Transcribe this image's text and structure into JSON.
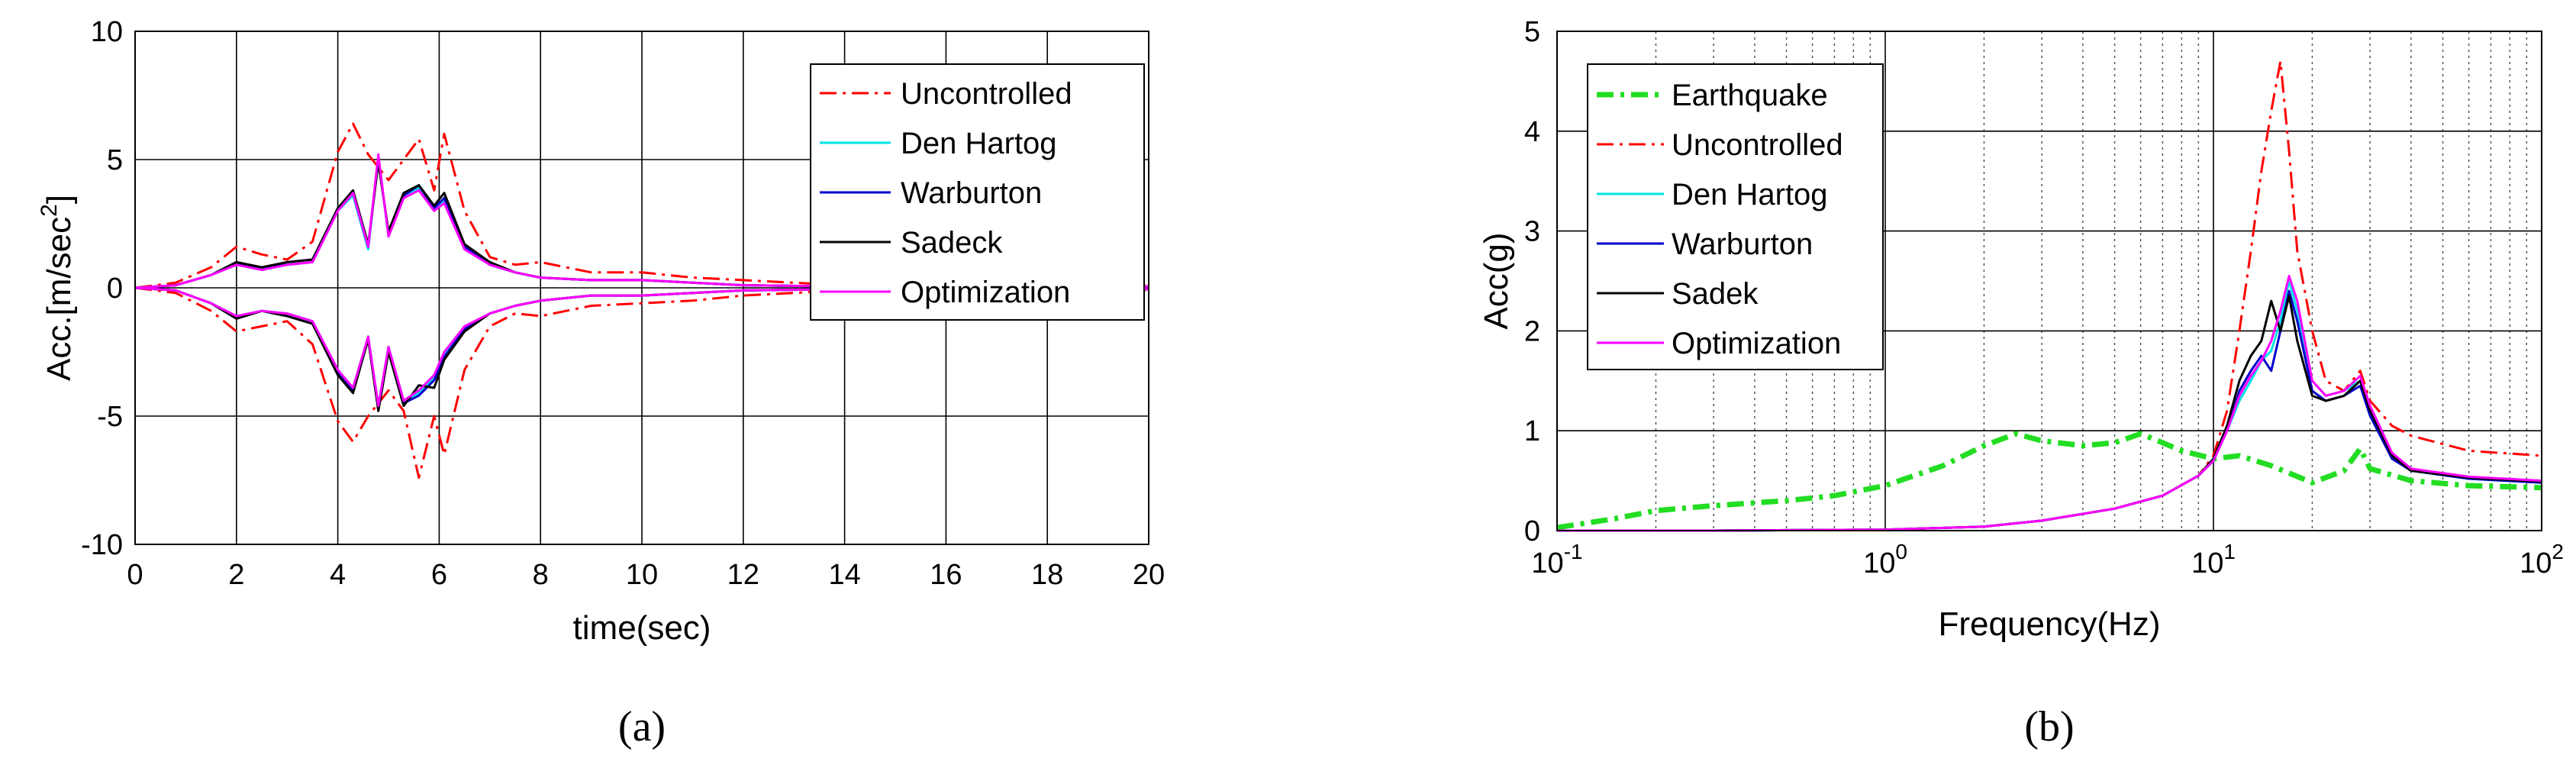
{
  "chart_data": [
    {
      "type": "line",
      "panel_label": "(a)",
      "xlabel": "time(sec)",
      "ylabel": "Acc.[m/sec",
      "ylabel_sup": "2",
      "ylabel_close": "]",
      "xlim": [
        0,
        20
      ],
      "ylim": [
        -10,
        10
      ],
      "xticks": [
        0,
        2,
        4,
        6,
        8,
        10,
        12,
        14,
        16,
        18,
        20
      ],
      "yticks": [
        -10,
        -5,
        0,
        5,
        10
      ],
      "grid": true,
      "legend_position": "top-right",
      "series": [
        {
          "name": "Uncontrolled",
          "color": "#ff0000",
          "dash": "dashdot",
          "x": [
            0,
            0.8,
            1.5,
            2,
            2.5,
            3,
            3.5,
            4,
            4.3,
            4.6,
            5,
            5.3,
            5.6,
            5.9,
            6.1,
            6.5,
            7,
            7.5,
            8,
            9,
            10,
            11,
            12,
            13,
            14,
            20
          ],
          "upper": [
            0,
            0.2,
            0.8,
            1.6,
            1.3,
            1.1,
            1.8,
            5.3,
            6.4,
            5.2,
            4.2,
            5.0,
            5.8,
            3.8,
            6.0,
            3.0,
            1.2,
            0.9,
            1.0,
            0.6,
            0.6,
            0.4,
            0.3,
            0.2,
            0.1,
            0.1
          ],
          "lower": [
            0,
            -0.2,
            -0.9,
            -1.7,
            -1.5,
            -1.3,
            -2.2,
            -5.2,
            -6.0,
            -5.0,
            -4.0,
            -4.8,
            -7.4,
            -5.0,
            -6.5,
            -3.2,
            -1.5,
            -1.0,
            -1.1,
            -0.7,
            -0.6,
            -0.5,
            -0.3,
            -0.2,
            -0.1,
            -0.1
          ]
        },
        {
          "name": "Den Hartog",
          "color": "#00e5e5",
          "dash": "solid",
          "x": [
            0,
            0.8,
            1.5,
            2,
            2.5,
            3,
            3.5,
            4,
            4.3,
            4.6,
            4.8,
            5,
            5.3,
            5.6,
            5.9,
            6.1,
            6.5,
            7,
            7.5,
            8,
            9,
            10,
            11,
            12,
            14,
            20
          ],
          "upper": [
            0,
            0.1,
            0.5,
            0.9,
            0.7,
            0.9,
            1.0,
            3.0,
            3.6,
            1.5,
            5.1,
            2.0,
            3.5,
            3.9,
            3.0,
            3.4,
            1.5,
            0.9,
            0.6,
            0.4,
            0.3,
            0.3,
            0.2,
            0.1,
            0.05,
            0.05
          ],
          "lower": [
            0,
            -0.1,
            -0.6,
            -1.1,
            -0.9,
            -1.0,
            -1.3,
            -3.2,
            -3.9,
            -1.9,
            -4.6,
            -2.3,
            -4.4,
            -4.1,
            -3.5,
            -2.6,
            -1.6,
            -1.0,
            -0.7,
            -0.5,
            -0.3,
            -0.3,
            -0.2,
            -0.1,
            -0.05,
            -0.05
          ]
        },
        {
          "name": "Warburton",
          "color": "#0000cc",
          "dash": "solid",
          "x": [
            0,
            0.8,
            1.5,
            2,
            2.5,
            3,
            3.5,
            4,
            4.3,
            4.6,
            4.8,
            5,
            5.3,
            5.6,
            5.9,
            6.1,
            6.5,
            7,
            7.5,
            8,
            9,
            10,
            11,
            12,
            14,
            20
          ],
          "upper": [
            0,
            0.1,
            0.5,
            1.0,
            0.7,
            1.0,
            1.1,
            3.1,
            3.7,
            1.6,
            5.0,
            2.1,
            3.6,
            4.0,
            3.1,
            3.5,
            1.6,
            0.9,
            0.6,
            0.4,
            0.3,
            0.3,
            0.2,
            0.1,
            0.05,
            0.05
          ],
          "lower": [
            0,
            -0.1,
            -0.6,
            -1.2,
            -0.9,
            -1.1,
            -1.4,
            -3.3,
            -4.0,
            -2.0,
            -4.7,
            -2.4,
            -4.5,
            -4.2,
            -3.6,
            -2.7,
            -1.6,
            -1.0,
            -0.7,
            -0.5,
            -0.3,
            -0.3,
            -0.2,
            -0.1,
            -0.05,
            -0.05
          ]
        },
        {
          "name": "Sadeck",
          "color": "#000000",
          "dash": "solid",
          "x": [
            0,
            0.8,
            1.5,
            2,
            2.5,
            3,
            3.5,
            4,
            4.3,
            4.6,
            4.8,
            5,
            5.3,
            5.6,
            5.9,
            6.1,
            6.5,
            7,
            7.5,
            8,
            9,
            10,
            11,
            12,
            14,
            20
          ],
          "upper": [
            0,
            0.1,
            0.5,
            1.0,
            0.8,
            1.0,
            1.1,
            3.1,
            3.8,
            1.7,
            4.9,
            2.2,
            3.7,
            4.0,
            3.2,
            3.7,
            1.7,
            1.0,
            0.6,
            0.4,
            0.3,
            0.3,
            0.2,
            0.1,
            0.05,
            0.05
          ],
          "lower": [
            0,
            -0.1,
            -0.6,
            -1.2,
            -0.9,
            -1.1,
            -1.4,
            -3.4,
            -4.1,
            -2.0,
            -4.8,
            -2.5,
            -4.6,
            -3.8,
            -3.9,
            -2.8,
            -1.7,
            -1.0,
            -0.7,
            -0.5,
            -0.3,
            -0.3,
            -0.2,
            -0.1,
            -0.05,
            -0.05
          ]
        },
        {
          "name": "Optimization",
          "color": "#ff00ff",
          "dash": "solid",
          "x": [
            0,
            0.8,
            1.5,
            2,
            2.5,
            3,
            3.5,
            4,
            4.3,
            4.6,
            4.8,
            5,
            5.3,
            5.6,
            5.9,
            6.1,
            6.5,
            7,
            7.5,
            8,
            9,
            10,
            11,
            12,
            14,
            20
          ],
          "upper": [
            0,
            0.1,
            0.5,
            0.9,
            0.7,
            0.9,
            1.0,
            3.0,
            3.7,
            1.6,
            5.2,
            2.0,
            3.5,
            3.8,
            3.0,
            3.3,
            1.5,
            0.9,
            0.6,
            0.4,
            0.3,
            0.3,
            0.2,
            0.1,
            0.05,
            0.05
          ],
          "lower": [
            0,
            -0.1,
            -0.6,
            -1.1,
            -0.9,
            -1.0,
            -1.3,
            -3.2,
            -3.9,
            -1.9,
            -4.6,
            -2.3,
            -4.4,
            -4.0,
            -3.4,
            -2.5,
            -1.5,
            -1.0,
            -0.7,
            -0.5,
            -0.3,
            -0.3,
            -0.2,
            -0.1,
            -0.05,
            -0.05
          ]
        }
      ]
    },
    {
      "type": "line",
      "panel_label": "(b)",
      "xlabel": "Frequency(Hz)",
      "ylabel": "Acc(g)",
      "xscale": "log",
      "xlim": [
        0.1,
        100
      ],
      "ylim": [
        0,
        5
      ],
      "xticks": [
        {
          "mantissa": "10",
          "exponent": "-1",
          "value": 0.1
        },
        {
          "mantissa": "10",
          "exponent": "0",
          "value": 1
        },
        {
          "mantissa": "10",
          "exponent": "1",
          "value": 10
        },
        {
          "mantissa": "10",
          "exponent": "2",
          "value": 100
        }
      ],
      "yticks": [
        0,
        1,
        2,
        3,
        4,
        5
      ],
      "grid": true,
      "legend_position": "top-left",
      "series": [
        {
          "name": "Earthquake",
          "color": "#22dd22",
          "dash": "dashdot-bold",
          "x": [
            0.1,
            0.15,
            0.2,
            0.3,
            0.5,
            0.7,
            1.0,
            1.5,
            2.0,
            2.5,
            3.0,
            4.0,
            5.0,
            6.0,
            7.0,
            8.0,
            10,
            12,
            15,
            20,
            25,
            28,
            30,
            40,
            60,
            100
          ],
          "y": [
            0.03,
            0.12,
            0.2,
            0.25,
            0.3,
            0.35,
            0.45,
            0.65,
            0.85,
            0.97,
            0.9,
            0.85,
            0.88,
            0.97,
            0.88,
            0.8,
            0.72,
            0.75,
            0.65,
            0.48,
            0.6,
            0.82,
            0.62,
            0.5,
            0.45,
            0.43
          ]
        },
        {
          "name": "Uncontrolled",
          "color": "#ff0000",
          "dash": "dashdot",
          "x": [
            0.1,
            0.3,
            1.0,
            2.0,
            3.0,
            5.0,
            7.0,
            9.0,
            10,
            11,
            12,
            13,
            14,
            15,
            16,
            17,
            18,
            20,
            22,
            25,
            28,
            30,
            35,
            40,
            60,
            100
          ],
          "y": [
            0.0,
            0.0,
            0.01,
            0.04,
            0.1,
            0.22,
            0.35,
            0.55,
            0.75,
            1.2,
            2.0,
            2.8,
            3.6,
            4.2,
            4.7,
            3.8,
            2.8,
            2.0,
            1.5,
            1.4,
            1.6,
            1.3,
            1.05,
            0.95,
            0.8,
            0.75
          ]
        },
        {
          "name": "Den Hartog",
          "color": "#00e5e5",
          "dash": "solid",
          "x": [
            0.1,
            0.3,
            1.0,
            2.0,
            3.0,
            5.0,
            7.0,
            9.0,
            10,
            11,
            12,
            13,
            14,
            15,
            16,
            17,
            18,
            20,
            22,
            25,
            28,
            30,
            35,
            40,
            60,
            100
          ],
          "y": [
            0.0,
            0.0,
            0.01,
            0.04,
            0.1,
            0.22,
            0.35,
            0.55,
            0.7,
            1.0,
            1.3,
            1.5,
            1.7,
            1.8,
            2.1,
            2.5,
            2.2,
            1.5,
            1.35,
            1.4,
            1.5,
            1.2,
            0.75,
            0.6,
            0.52,
            0.48
          ]
        },
        {
          "name": "Warburton",
          "color": "#0000cc",
          "dash": "solid",
          "x": [
            0.1,
            0.3,
            1.0,
            2.0,
            3.0,
            5.0,
            7.0,
            9.0,
            10,
            11,
            12,
            13,
            14,
            15,
            16,
            17,
            18,
            20,
            22,
            25,
            28,
            30,
            35,
            40,
            60,
            100
          ],
          "y": [
            0.0,
            0.0,
            0.01,
            0.04,
            0.1,
            0.22,
            0.35,
            0.55,
            0.7,
            1.0,
            1.4,
            1.6,
            1.75,
            1.6,
            2.0,
            2.4,
            2.1,
            1.4,
            1.3,
            1.35,
            1.45,
            1.15,
            0.72,
            0.6,
            0.52,
            0.48
          ]
        },
        {
          "name": "Sadek",
          "color": "#000000",
          "dash": "solid",
          "x": [
            0.1,
            0.3,
            1.0,
            2.0,
            3.0,
            5.0,
            7.0,
            9.0,
            10,
            11,
            12,
            13,
            14,
            15,
            16,
            17,
            18,
            20,
            22,
            25,
            28,
            30,
            35,
            40,
            60,
            100
          ],
          "y": [
            0.0,
            0.0,
            0.01,
            0.04,
            0.1,
            0.22,
            0.35,
            0.55,
            0.72,
            1.05,
            1.5,
            1.75,
            1.9,
            2.3,
            2.0,
            2.35,
            1.9,
            1.35,
            1.3,
            1.35,
            1.5,
            1.2,
            0.75,
            0.6,
            0.53,
            0.49
          ]
        },
        {
          "name": "Optimization",
          "color": "#ff00ff",
          "dash": "solid",
          "x": [
            0.1,
            0.3,
            1.0,
            2.0,
            3.0,
            5.0,
            7.0,
            9.0,
            10,
            11,
            12,
            13,
            14,
            15,
            16,
            17,
            18,
            20,
            22,
            25,
            28,
            30,
            35,
            40,
            60,
            100
          ],
          "y": [
            0.0,
            0.0,
            0.01,
            0.04,
            0.1,
            0.22,
            0.35,
            0.55,
            0.7,
            1.0,
            1.35,
            1.55,
            1.7,
            1.9,
            2.2,
            2.55,
            2.3,
            1.5,
            1.35,
            1.4,
            1.55,
            1.25,
            0.78,
            0.62,
            0.54,
            0.5
          ]
        }
      ]
    }
  ]
}
